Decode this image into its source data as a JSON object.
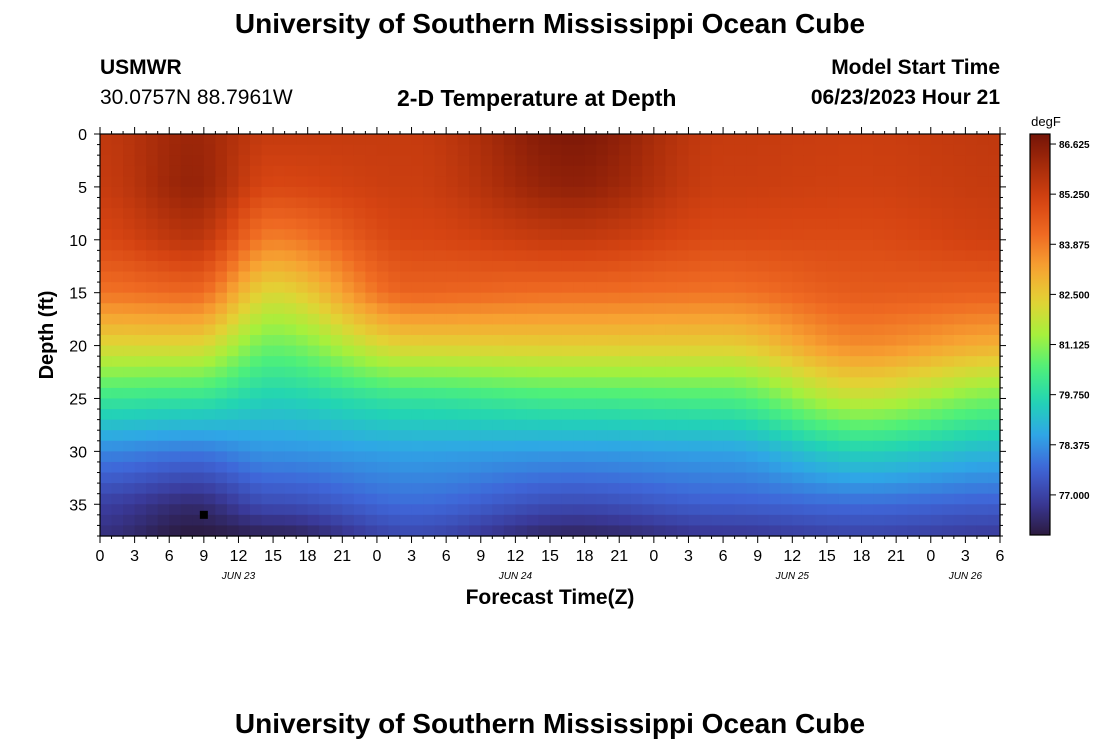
{
  "header": {
    "title": "University of Southern Mississippi Ocean Cube",
    "station_name": "USMWR",
    "station_coords": "30.0757N  88.7961W",
    "subtitle": "2-D Temperature at Depth",
    "model_label": "Model Start Time",
    "model_time": "06/23/2023 Hour 21"
  },
  "footer": {
    "title": "University of Southern Mississippi Ocean Cube"
  },
  "chart_data": {
    "type": "heatmap",
    "title": "2-D Temperature at Depth",
    "xlabel": "Forecast Time(Z)",
    "ylabel": "Depth (ft)",
    "x_units": "hours from Jun 23 00Z",
    "xlim": [
      0,
      78
    ],
    "ylim": [
      0,
      38
    ],
    "y_ticks": [
      0,
      5,
      10,
      15,
      20,
      25,
      30,
      35
    ],
    "x_ticks": [
      {
        "hour": 0,
        "label": "0"
      },
      {
        "hour": 3,
        "label": "3"
      },
      {
        "hour": 6,
        "label": "6"
      },
      {
        "hour": 9,
        "label": "9"
      },
      {
        "hour": 12,
        "label": "12"
      },
      {
        "hour": 15,
        "label": "15"
      },
      {
        "hour": 18,
        "label": "18"
      },
      {
        "hour": 21,
        "label": "21"
      },
      {
        "hour": 24,
        "label": "0"
      },
      {
        "hour": 27,
        "label": "3"
      },
      {
        "hour": 30,
        "label": "6"
      },
      {
        "hour": 33,
        "label": "9"
      },
      {
        "hour": 36,
        "label": "12"
      },
      {
        "hour": 39,
        "label": "15"
      },
      {
        "hour": 42,
        "label": "18"
      },
      {
        "hour": 45,
        "label": "21"
      },
      {
        "hour": 48,
        "label": "0"
      },
      {
        "hour": 51,
        "label": "3"
      },
      {
        "hour": 54,
        "label": "6"
      },
      {
        "hour": 57,
        "label": "9"
      },
      {
        "hour": 60,
        "label": "12"
      },
      {
        "hour": 63,
        "label": "15"
      },
      {
        "hour": 66,
        "label": "18"
      },
      {
        "hour": 69,
        "label": "21"
      },
      {
        "hour": 72,
        "label": "0"
      },
      {
        "hour": 75,
        "label": "3"
      },
      {
        "hour": 78,
        "label": "6"
      }
    ],
    "day_labels": [
      {
        "hour": 12,
        "label": "JUN 23"
      },
      {
        "hour": 36,
        "label": "JUN 24"
      },
      {
        "hour": 60,
        "label": "JUN 25"
      },
      {
        "hour": 75,
        "label": "JUN 26"
      }
    ],
    "colorbar": {
      "units": "degF",
      "min": 75.9,
      "max": 86.9,
      "tick_values": [
        86.625,
        85.25,
        83.875,
        82.5,
        81.125,
        79.75,
        78.375,
        77.0
      ],
      "tick_labels": [
        "86.625",
        "85.250",
        "83.875",
        "82.500",
        "81.125",
        "79.750",
        "78.375",
        "77.000"
      ],
      "colors": [
        "#2b1a3e",
        "#3a3a9a",
        "#3f66d8",
        "#2fa6e6",
        "#22d4b4",
        "#4ef07a",
        "#a6f03c",
        "#e3d234",
        "#f7a332",
        "#ef6a22",
        "#d64412",
        "#a82c0a",
        "#741407"
      ]
    },
    "profiles": [
      {
        "hour": 0,
        "temps": [
          85.5,
          85.4,
          85.0,
          84.0,
          82.2,
          80.1,
          78.2,
          76.9,
          76.5
        ]
      },
      {
        "hour": 8,
        "temps": [
          86.2,
          86.3,
          85.6,
          84.2,
          82.2,
          80.0,
          78.0,
          76.4,
          75.9
        ]
      },
      {
        "hour": 15,
        "temps": [
          85.4,
          85.0,
          83.8,
          82.2,
          80.8,
          79.5,
          78.4,
          77.2,
          76.1
        ]
      },
      {
        "hour": 27,
        "temps": [
          85.4,
          85.3,
          85.0,
          84.3,
          82.3,
          80.0,
          78.6,
          77.8,
          77.1
        ]
      },
      {
        "hour": 41,
        "temps": [
          86.7,
          86.4,
          85.4,
          84.1,
          82.4,
          80.3,
          78.5,
          77.2,
          76.2
        ]
      },
      {
        "hour": 54,
        "temps": [
          85.4,
          85.3,
          84.9,
          84.0,
          82.4,
          80.4,
          78.6,
          77.6,
          76.7
        ]
      },
      {
        "hour": 66,
        "temps": [
          85.3,
          85.2,
          84.9,
          84.5,
          83.6,
          81.8,
          79.5,
          77.8,
          77.0
        ]
      },
      {
        "hour": 78,
        "temps": [
          85.5,
          85.4,
          85.2,
          84.4,
          83.0,
          80.9,
          79.0,
          77.6,
          76.8
        ]
      }
    ],
    "profile_depths": [
      0,
      5,
      10,
      15,
      20,
      25,
      30,
      35,
      38
    ],
    "marker": {
      "hour": 9,
      "depth": 36
    }
  }
}
